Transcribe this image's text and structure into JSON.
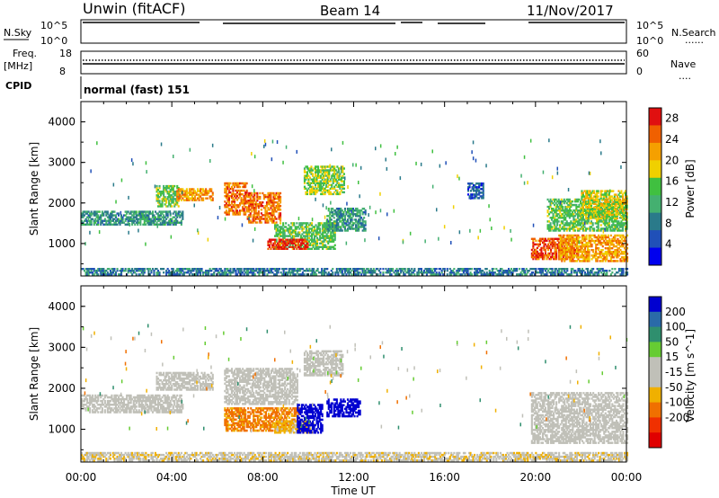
{
  "header": {
    "station": "Unwin (fitACF)",
    "beam": "Beam 14",
    "date": "11/Nov/2017"
  },
  "panels": {
    "nsky_label": "N.Sky",
    "nsearch_label": "N.Search",
    "nsearch_style": "......",
    "count_ticks": [
      "10^5",
      "10^0"
    ],
    "freq_label_1": "Freq.",
    "freq_label_2": "[MHz]",
    "freq_ticks": [
      "18",
      "8"
    ],
    "nave_label": "Nave",
    "nave_style": "....",
    "nave_ticks": [
      "60",
      "0"
    ],
    "cpid_label": "CPID",
    "cpid_text": "normal (fast) 151"
  },
  "colors": {
    "power_scale": [
      "#0000ee",
      "#2050b8",
      "#2a7a8a",
      "#44b070",
      "#40c040",
      "#f0d000",
      "#f5a000",
      "#f06000",
      "#e01010"
    ],
    "velocity_scale": [
      "#0000d0",
      "#2a6aa8",
      "#2f8f6e",
      "#66cc33",
      "#c0c0b8",
      "#c0c0b8",
      "#f0b000",
      "#f07000",
      "#f03000",
      "#e00000"
    ]
  },
  "chart_data": [
    {
      "type": "heatmap",
      "panel": "power",
      "xlabel": "Time UT",
      "ylabel": "Slant Range [km]",
      "x_ticks": [
        "00:00",
        "04:00",
        "08:00",
        "12:00",
        "16:00",
        "20:00",
        "00:00"
      ],
      "xlim": [
        "00:00",
        "24:00"
      ],
      "y_ticks": [
        1000,
        2000,
        3000,
        4000
      ],
      "ylim": [
        200,
        4500
      ],
      "colorbar_label": "Power [dB]",
      "colorbar_ticks": [
        4,
        8,
        12,
        16,
        20,
        24,
        28
      ],
      "colorbar_range": [
        0,
        30
      ],
      "regions": [
        {
          "t": [
            0.0,
            4.5
          ],
          "range": [
            1450,
            1800
          ],
          "value": 10
        },
        {
          "t": [
            3.3,
            4.3
          ],
          "range": [
            1900,
            2400
          ],
          "value": 14
        },
        {
          "t": [
            4.2,
            5.8
          ],
          "range": [
            2050,
            2350
          ],
          "value": 22
        },
        {
          "t": [
            6.3,
            7.3
          ],
          "range": [
            1700,
            2500
          ],
          "value": 24
        },
        {
          "t": [
            7.3,
            8.8
          ],
          "range": [
            1500,
            2250
          ],
          "value": 24
        },
        {
          "t": [
            8.5,
            11.2
          ],
          "range": [
            850,
            1500
          ],
          "value": 14
        },
        {
          "t": [
            8.2,
            10.0
          ],
          "range": [
            850,
            1100
          ],
          "value": 28
        },
        {
          "t": [
            9.8,
            11.6
          ],
          "range": [
            2200,
            2900
          ],
          "value": 16
        },
        {
          "t": [
            10.8,
            12.5
          ],
          "range": [
            1300,
            1850
          ],
          "value": 10
        },
        {
          "t": [
            17.0,
            17.7
          ],
          "range": [
            2100,
            2500
          ],
          "value": 6
        },
        {
          "t": [
            19.8,
            21.8
          ],
          "range": [
            600,
            1100
          ],
          "value": 26
        },
        {
          "t": [
            21.0,
            24.0
          ],
          "range": [
            550,
            1200
          ],
          "value": 22
        },
        {
          "t": [
            20.5,
            24.0
          ],
          "range": [
            1300,
            2100
          ],
          "value": 14
        },
        {
          "t": [
            22.0,
            24.0
          ],
          "range": [
            1600,
            2300
          ],
          "value": 18
        },
        {
          "t": [
            0.0,
            24.0
          ],
          "range": [
            220,
            400
          ],
          "value": 8
        }
      ]
    },
    {
      "type": "heatmap",
      "panel": "velocity",
      "xlabel": "Time UT",
      "ylabel": "Slant Range [km]",
      "x_ticks": [
        "00:00",
        "04:00",
        "08:00",
        "12:00",
        "16:00",
        "20:00",
        "00:00"
      ],
      "xlim": [
        "00:00",
        "24:00"
      ],
      "y_ticks": [
        1000,
        2000,
        3000,
        4000
      ],
      "ylim": [
        200,
        4500
      ],
      "colorbar_label": "Velocity [m s^-1]",
      "colorbar_ticks": [
        200,
        100,
        50,
        15,
        -15,
        -50,
        -100,
        -200
      ],
      "colorbar_range": [
        -250,
        250
      ],
      "regions": [
        {
          "t": [
            0.0,
            4.5
          ],
          "range": [
            1400,
            1850
          ],
          "value": 0
        },
        {
          "t": [
            3.3,
            5.8
          ],
          "range": [
            1950,
            2400
          ],
          "value": 0
        },
        {
          "t": [
            6.3,
            9.5
          ],
          "range": [
            1600,
            2500
          ],
          "value": 0
        },
        {
          "t": [
            6.3,
            9.6
          ],
          "range": [
            950,
            1500
          ],
          "value": -110
        },
        {
          "t": [
            8.5,
            10.2
          ],
          "range": [
            900,
            1200
          ],
          "value": -60
        },
        {
          "t": [
            9.5,
            10.6
          ],
          "range": [
            900,
            1600
          ],
          "value": 220
        },
        {
          "t": [
            10.8,
            12.3
          ],
          "range": [
            1300,
            1750
          ],
          "value": 220
        },
        {
          "t": [
            9.8,
            11.5
          ],
          "range": [
            2300,
            2900
          ],
          "value": 0
        },
        {
          "t": [
            19.8,
            24.0
          ],
          "range": [
            650,
            1900
          ],
          "value": 0
        },
        {
          "t": [
            0.0,
            24.0
          ],
          "range": [
            220,
            420
          ],
          "value": -40
        }
      ]
    }
  ]
}
